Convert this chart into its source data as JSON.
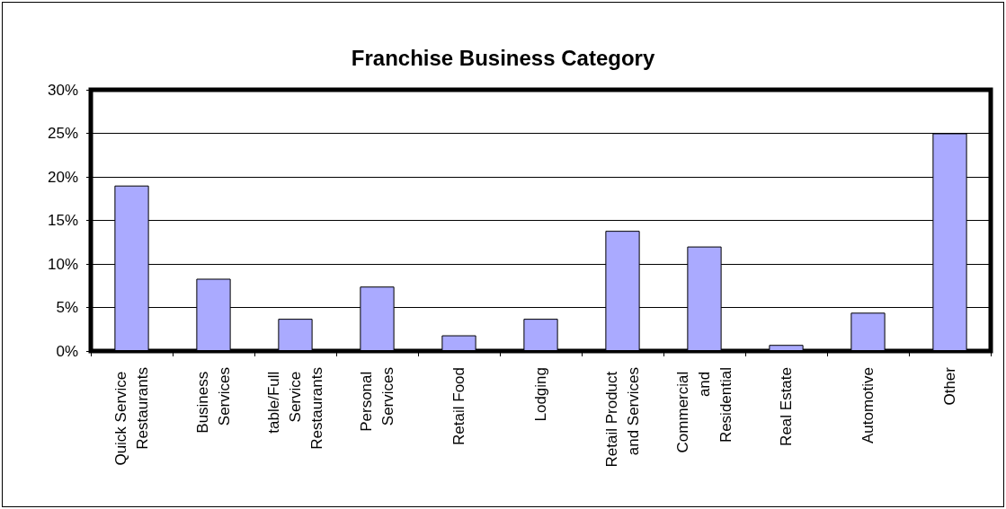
{
  "chart_data": {
    "type": "bar",
    "title": "Franchise Business Category",
    "categories": [
      "Quick Service Restaurants",
      "Business Services",
      "table/Full Service Restaurants",
      "Personal Services",
      "Retail Food",
      "Lodging",
      "Retail Product and Services",
      "Commercial and Residential",
      "Real Estate",
      "Automotive",
      "Other"
    ],
    "values": [
      19.0,
      8.3,
      3.7,
      7.4,
      1.8,
      3.7,
      13.8,
      12.0,
      0.7,
      4.4,
      25.0
    ],
    "color": "#aaaaff",
    "ylim": [
      0,
      30
    ],
    "yticks": [
      {
        "value": 0,
        "label": "0%"
      },
      {
        "value": 5,
        "label": "5%"
      },
      {
        "value": 10,
        "label": "10%"
      },
      {
        "value": 15,
        "label": "15%"
      },
      {
        "value": 20,
        "label": "20%"
      },
      {
        "value": 25,
        "label": "25%"
      },
      {
        "value": 30,
        "label": "30%"
      }
    ],
    "grid": "y"
  }
}
